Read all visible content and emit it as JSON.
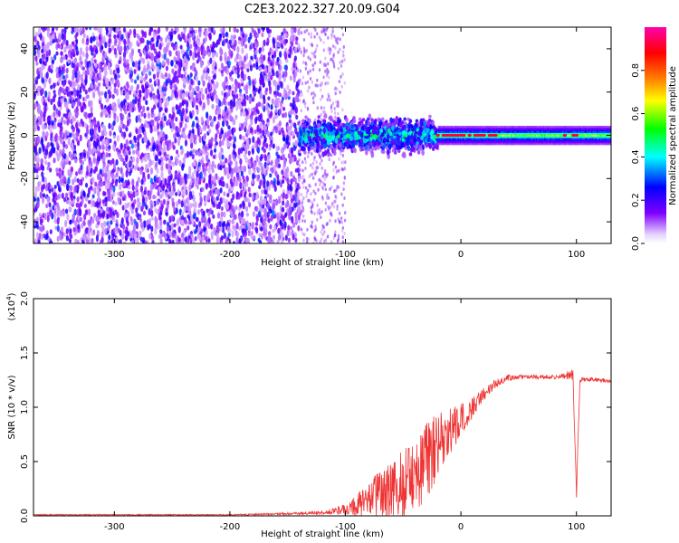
{
  "figure_title": "C2E3.2022.327.20.09.G04",
  "chart_data": [
    {
      "type": "heatmap",
      "title": "",
      "xlabel": "Height of straight line (km)",
      "ylabel": "Frequency (Hz)",
      "xlim": [
        -370,
        130
      ],
      "ylim": [
        -50,
        50
      ],
      "x_ticks": [
        -300,
        -200,
        -100,
        0,
        100
      ],
      "x_tick_labels": [
        "-300",
        "-200",
        "-100",
        "0",
        "100"
      ],
      "y_ticks": [
        -40,
        -20,
        0,
        20,
        40
      ],
      "y_tick_labels": [
        "-40",
        "-20",
        "0",
        "20",
        "40"
      ],
      "colorbar": {
        "label": "Normalized spectral amplitude",
        "range": [
          0,
          1
        ],
        "ticks": [
          0,
          0.2,
          0.4,
          0.6,
          0.8
        ],
        "tick_labels": [
          "0.0",
          "0.2",
          "0.4",
          "0.6",
          "0.8"
        ],
        "colormap": [
          "#ffffff",
          "#8000ff",
          "#0000ff",
          "#00ffff",
          "#00ff00",
          "#ffff00",
          "#ff8000",
          "#ff0000",
          "#ff00ff"
        ]
      },
      "regions": [
        {
          "x_range": [
            -370,
            -140
          ],
          "freq_range": [
            -50,
            50
          ],
          "amplitude": 0.1
        },
        {
          "x_range": [
            -140,
            -20
          ],
          "freq_range": [
            -8,
            8
          ],
          "amplitude": 0.35
        },
        {
          "x_range": [
            -20,
            130
          ],
          "freq_range": [
            -3,
            3
          ],
          "amplitude": 0.6
        },
        {
          "x_range": [
            -20,
            30
          ],
          "freq_range": [
            -1,
            1
          ],
          "amplitude": 0.9
        },
        {
          "x_range": [
            90,
            100
          ],
          "freq_range": [
            -1,
            1
          ],
          "amplitude": 0.9
        }
      ]
    },
    {
      "type": "line",
      "title": "",
      "xlabel": "Height of straight line (km)",
      "ylabel": "SNR (10 * v/v)",
      "y_multiplier_label": "(x10",
      "y_multiplier_exp": "4",
      "xlim": [
        -370,
        130
      ],
      "ylim": [
        0,
        2.0
      ],
      "x_ticks": [
        -300,
        -200,
        -100,
        0,
        100
      ],
      "x_tick_labels": [
        "-300",
        "-200",
        "-100",
        "0",
        "100"
      ],
      "y_ticks": [
        0,
        0.5,
        1.0,
        1.5,
        2.0
      ],
      "y_tick_labels": [
        "0.0",
        "0.5",
        "1.0",
        "1.5",
        "2.0"
      ],
      "color": "#ee3333",
      "series": [
        {
          "x": [
            -370,
            -300,
            -200,
            -150,
            -120,
            -100,
            -90,
            -80,
            -70,
            -60,
            -50,
            -40,
            -30,
            -20,
            -10,
            0,
            10,
            20,
            30,
            40,
            50,
            60,
            70,
            80,
            90,
            97,
            100,
            103,
            110,
            120,
            130
          ],
          "y": [
            0.01,
            0.01,
            0.01,
            0.02,
            0.03,
            0.06,
            0.1,
            0.15,
            0.2,
            0.25,
            0.3,
            0.38,
            0.5,
            0.65,
            0.78,
            0.88,
            1.0,
            1.12,
            1.22,
            1.27,
            1.28,
            1.28,
            1.28,
            1.28,
            1.29,
            1.3,
            0.2,
            1.25,
            1.26,
            1.25,
            1.24
          ],
          "noise_amplitude": [
            0.005,
            0.005,
            0.005,
            0.01,
            0.02,
            0.05,
            0.1,
            0.15,
            0.22,
            0.28,
            0.32,
            0.35,
            0.35,
            0.3,
            0.22,
            0.15,
            0.1,
            0.06,
            0.04,
            0.03,
            0.02,
            0.02,
            0.02,
            0.02,
            0.03,
            0.05,
            0.05,
            0.02,
            0.02,
            0.02,
            0.02
          ]
        }
      ]
    }
  ]
}
